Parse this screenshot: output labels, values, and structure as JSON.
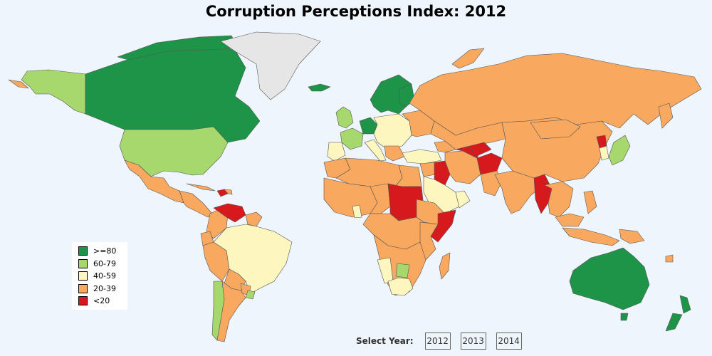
{
  "title": "Corruption Perceptions Index: 2012",
  "colors": {
    "ge80": "#1e9448",
    "60_79": "#a6d86e",
    "40_59": "#fdf6bf",
    "20_39": "#f9a860",
    "lt20": "#d6191c",
    "nodata": "#e6e6e6",
    "ocean": "#eef5fc",
    "border": "#555555"
  },
  "legend": [
    {
      "label": ">=80",
      "color": "#1e9448"
    },
    {
      "label": "60-79",
      "color": "#a6d86e"
    },
    {
      "label": "40-59",
      "color": "#fdf6bf"
    },
    {
      "label": "20-39",
      "color": "#f9a860"
    },
    {
      "label": "<20",
      "color": "#d6191c"
    }
  ],
  "year_selector": {
    "label": "Select Year:",
    "years": [
      "2012",
      "2013",
      "2014"
    ]
  }
}
